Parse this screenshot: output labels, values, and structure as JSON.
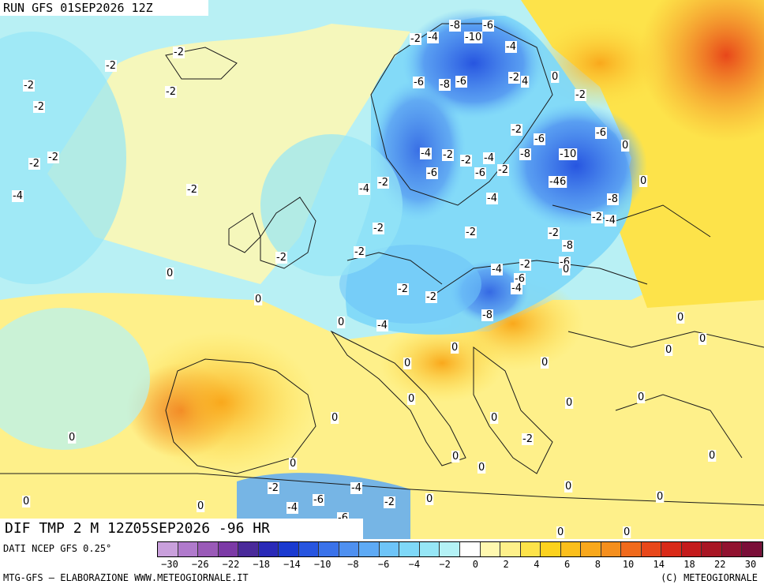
{
  "header": {
    "run_title": "RUN GFS 01SEP2026 12Z"
  },
  "product_title": "DIF TMP 2 M 12Z05SEP2026 -96 HR",
  "source_note": "DATI NCEP GFS 0.25°",
  "footer": {
    "left": "MTG-GFS — ELABORAZIONE WWW.METEOGIORNALE.IT",
    "right": "(C) METEOGIORNALE"
  },
  "colors": {
    "sea_cool": "#b8f0f4",
    "cold_strong": "#2757e0",
    "warm": "#fde34a",
    "hot": "#f06a1c",
    "country_borders": "#1a1a1a",
    "scale": [
      "#c9a0dc",
      "#b07acc",
      "#9a5ab8",
      "#7c3aa6",
      "#4a2a9a",
      "#2a2ab8",
      "#1a3ad0",
      "#2755e0",
      "#3a72ea",
      "#4f90f0",
      "#5eaaf5",
      "#6ec4f8",
      "#7fd8f8",
      "#96e6f6",
      "#b4f2f6",
      "#ffffff",
      "#fff8b0",
      "#fef08a",
      "#fde34a",
      "#fcd21e",
      "#fbbf1c",
      "#f9a81c",
      "#f58f1e",
      "#f06a1c",
      "#e8471a",
      "#d92a18",
      "#c41b1c",
      "#a81624",
      "#911230",
      "#7a0e38"
    ]
  },
  "colorbar_ticks": [
    "−30",
    "−26",
    "−22",
    "−18",
    "−14",
    "−10",
    "−8",
    "−6",
    "−4",
    "−2",
    "0",
    "2",
    "4",
    "6",
    "8",
    "10",
    "14",
    "18",
    "22",
    "30"
  ],
  "map_labels": [
    {
      "t": "-2"
    },
    {
      "t": "-2"
    },
    {
      "t": "-2"
    },
    {
      "t": "-2"
    },
    {
      "t": "-2"
    },
    {
      "t": "-2"
    },
    {
      "t": "-2"
    },
    {
      "t": "-4"
    },
    {
      "t": "-2"
    },
    {
      "t": "-8"
    },
    {
      "t": "-6"
    },
    {
      "t": "-2"
    },
    {
      "t": "-4"
    },
    {
      "t": "-10"
    },
    {
      "t": "-4"
    },
    {
      "t": "-6"
    },
    {
      "t": "-8"
    },
    {
      "t": "-6"
    },
    {
      "t": "-2"
    },
    {
      "t": "4"
    },
    {
      "t": "0"
    },
    {
      "t": "-2"
    },
    {
      "t": "-2"
    },
    {
      "t": "-6"
    },
    {
      "t": "-6"
    },
    {
      "t": "0"
    },
    {
      "t": "-4"
    },
    {
      "t": "-2"
    },
    {
      "t": "-2"
    },
    {
      "t": "-4"
    },
    {
      "t": "-8"
    },
    {
      "t": "-10"
    },
    {
      "t": "-6"
    },
    {
      "t": "-2"
    },
    {
      "t": "-6"
    },
    {
      "t": "-4"
    },
    {
      "t": "-46"
    },
    {
      "t": "0"
    },
    {
      "t": "-2"
    },
    {
      "t": "-4"
    },
    {
      "t": "-8"
    },
    {
      "t": "-2"
    },
    {
      "t": "-4"
    },
    {
      "t": "-2"
    },
    {
      "t": "-2"
    },
    {
      "t": "-2"
    },
    {
      "t": "-8"
    },
    {
      "t": "-6"
    },
    {
      "t": "-2"
    },
    {
      "t": "-4"
    },
    {
      "t": "0"
    },
    {
      "t": "-6"
    },
    {
      "t": "-4"
    },
    {
      "t": "-2"
    },
    {
      "t": "-2"
    },
    {
      "t": "-2"
    },
    {
      "t": "0"
    },
    {
      "t": "0"
    },
    {
      "t": "-4"
    },
    {
      "t": "-2"
    },
    {
      "t": "-8"
    },
    {
      "t": "0"
    },
    {
      "t": "0"
    },
    {
      "t": "0"
    },
    {
      "t": "0"
    },
    {
      "t": "0"
    },
    {
      "t": "0"
    },
    {
      "t": "0"
    },
    {
      "t": "0"
    },
    {
      "t": "0"
    },
    {
      "t": "0"
    },
    {
      "t": "0"
    },
    {
      "t": "0"
    },
    {
      "t": "0"
    },
    {
      "t": "-2"
    },
    {
      "t": "0"
    },
    {
      "t": "0"
    },
    {
      "t": "0"
    },
    {
      "t": "0"
    },
    {
      "t": "0"
    },
    {
      "t": "0"
    },
    {
      "t": "-2"
    },
    {
      "t": "-4"
    },
    {
      "t": "-6"
    },
    {
      "t": "-4"
    },
    {
      "t": "-2"
    },
    {
      "t": "-6"
    },
    {
      "t": "0"
    },
    {
      "t": "0"
    },
    {
      "t": "0"
    },
    {
      "t": "0"
    },
    {
      "t": "0"
    },
    {
      "t": "0"
    }
  ]
}
